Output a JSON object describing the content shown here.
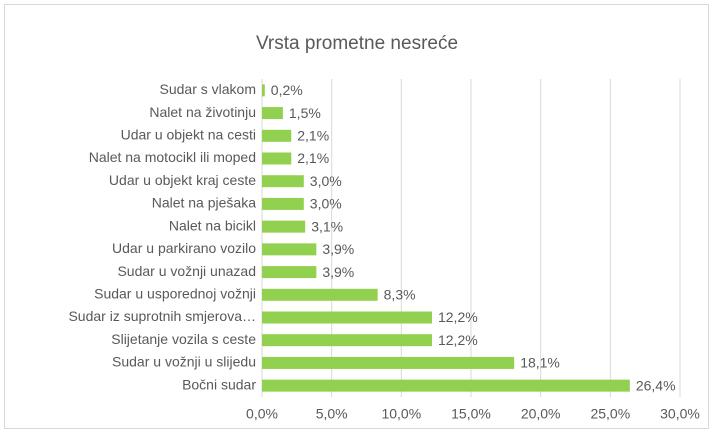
{
  "chart_data": {
    "type": "bar",
    "orientation": "horizontal",
    "title": "Vrsta prometne nesreće",
    "categories": [
      "Sudar s vlakom",
      "Nalet na životinju",
      "Udar u objekt na cesti",
      "Nalet na motocikl ili moped",
      "Udar u objekt kraj ceste",
      "Nalet na pješaka",
      "Nalet na bicikl",
      "Udar u parkirano vozilo",
      "Sudar u vožnji unazad",
      "Sudar u usporednoj vožnji",
      "Sudar iz suprotnih smjerova…",
      "Slijetanje vozila s ceste",
      "Sudar u vožnji u slijedu",
      "Bočni sudar"
    ],
    "values": [
      0.2,
      1.5,
      2.1,
      2.1,
      3.0,
      3.0,
      3.1,
      3.9,
      3.9,
      8.3,
      12.2,
      12.2,
      18.1,
      26.4
    ],
    "value_labels": [
      "0,2%",
      "1,5%",
      "2,1%",
      "2,1%",
      "3,0%",
      "3,0%",
      "3,1%",
      "3,9%",
      "3,9%",
      "8,3%",
      "12,2%",
      "12,2%",
      "18,1%",
      "26,4%"
    ],
    "color": "#92d050",
    "xlim": [
      0,
      30
    ],
    "xticks": [
      {
        "value": 0,
        "label": "0,0%"
      },
      {
        "value": 5,
        "label": "5,0%"
      },
      {
        "value": 10,
        "label": "10,0%"
      },
      {
        "value": 15,
        "label": "15,0%"
      },
      {
        "value": 20,
        "label": "20,0%"
      },
      {
        "value": 25,
        "label": "25,0%"
      },
      {
        "value": 30,
        "label": "30,0%"
      }
    ],
    "grid": true
  }
}
